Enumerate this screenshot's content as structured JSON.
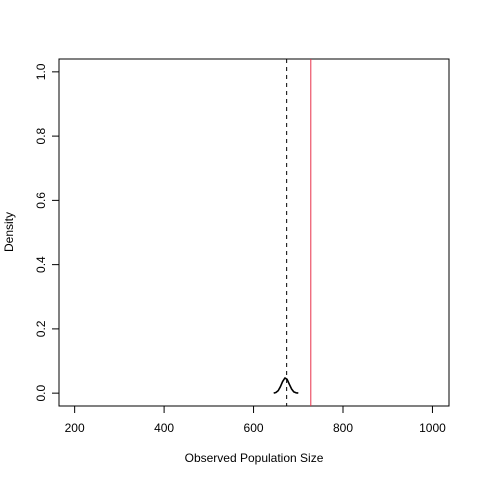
{
  "chart_data": {
    "type": "line",
    "title": "",
    "xlabel": "Observed Population Size",
    "ylabel": "Density",
    "xlim": [
      165,
      1037
    ],
    "ylim": [
      -0.04,
      1.04
    ],
    "xticks": [
      200,
      400,
      600,
      800,
      1000
    ],
    "yticks": [
      0.0,
      0.2,
      0.4,
      0.6,
      0.8,
      1.0
    ],
    "ytick_labels": [
      "0.0",
      "0.2",
      "0.4",
      "0.6",
      "0.8",
      "1.0"
    ],
    "grid": false,
    "legend": "none",
    "series": [
      {
        "x": [
          645,
          650,
          655,
          660,
          665,
          670,
          675,
          680,
          685,
          690,
          695,
          700
        ],
        "y": [
          0.0,
          0.002,
          0.008,
          0.02,
          0.036,
          0.047,
          0.043,
          0.028,
          0.013,
          0.004,
          0.001,
          0.0
        ],
        "color": "#000000",
        "style": "solid"
      }
    ],
    "vlines": [
      {
        "x": 674,
        "color": "#000000",
        "style": "dashed"
      },
      {
        "x": 728,
        "color": "#e8304a",
        "style": "solid"
      }
    ]
  }
}
